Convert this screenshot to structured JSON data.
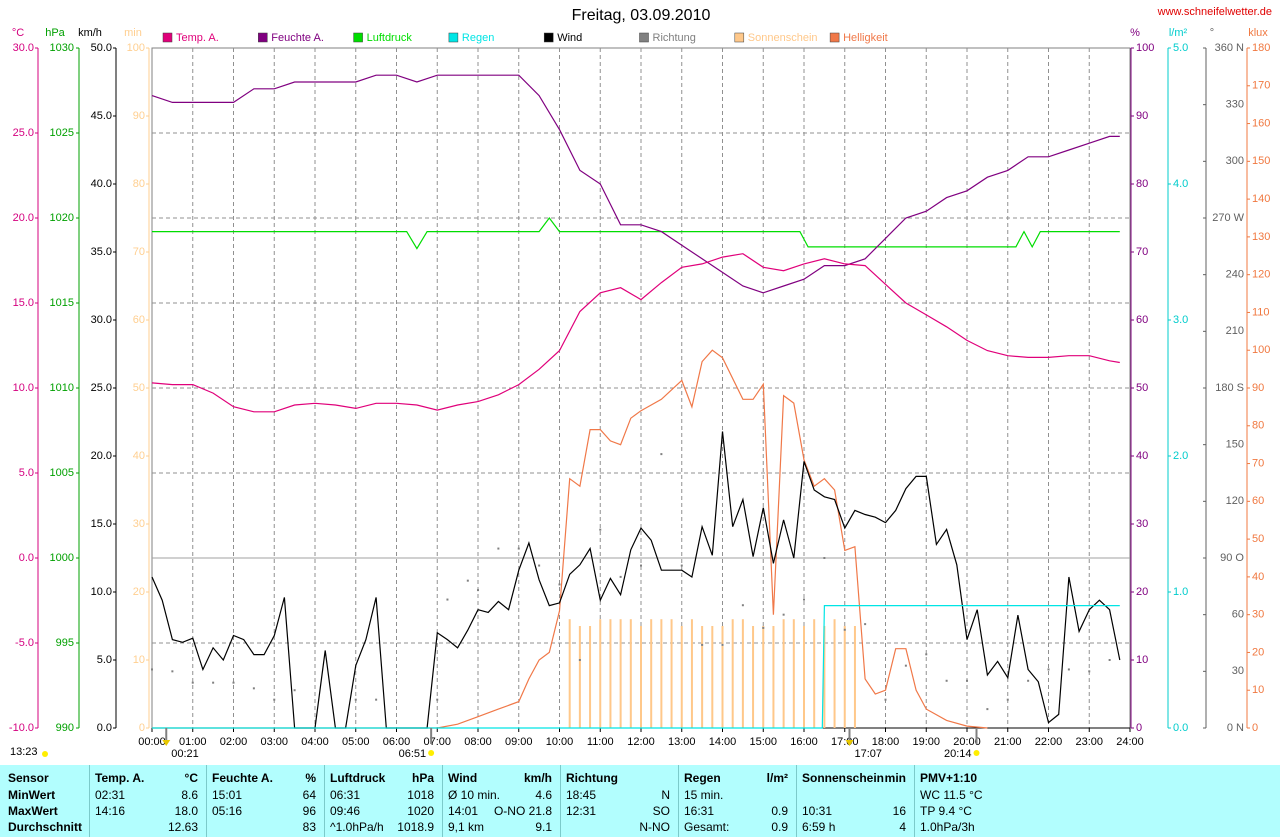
{
  "chart_data": {
    "type": "line",
    "title": "Freitag, 03.09.2010",
    "source": "www.schneifelwetter.de",
    "generated": "13:23",
    "annotations": [
      "00:21",
      "06:51",
      "17:07",
      "20:14"
    ],
    "xlim": [
      0,
      24
    ],
    "xticks": [
      {
        "value": 0,
        "label": "00:00"
      },
      {
        "value": 1,
        "label": "01:00"
      },
      {
        "value": 2,
        "label": "02:00"
      },
      {
        "value": 3,
        "label": "03:00"
      },
      {
        "value": 4,
        "label": "04:00"
      },
      {
        "value": 5,
        "label": "05:00"
      },
      {
        "value": 6,
        "label": "06:00"
      },
      {
        "value": 7,
        "label": "07:00"
      },
      {
        "value": 8,
        "label": "08:00"
      },
      {
        "value": 9,
        "label": "09:00"
      },
      {
        "value": 10,
        "label": "10:00"
      },
      {
        "value": 11,
        "label": "11:00"
      },
      {
        "value": 12,
        "label": "12:00"
      },
      {
        "value": 13,
        "label": "13:00"
      },
      {
        "value": 14,
        "label": "14:00"
      },
      {
        "value": 15,
        "label": "15:00"
      },
      {
        "value": 16,
        "label": "16:00"
      },
      {
        "value": 17,
        "label": "17:00"
      },
      {
        "value": 18,
        "label": "18:00"
      },
      {
        "value": 19,
        "label": "19:00"
      },
      {
        "value": 20,
        "label": "20:00"
      },
      {
        "value": 21,
        "label": "21:00"
      },
      {
        "value": 22,
        "label": "22:00"
      },
      {
        "value": 23,
        "label": "23:00"
      },
      {
        "value": 24,
        "label": "24:00"
      }
    ],
    "xgrid": true,
    "axes": [
      {
        "label": "°C",
        "color": "#d4007f",
        "lim": [
          -10,
          30
        ],
        "grid": true,
        "ticks": [
          {
            "value": -10,
            "label": "-10.0"
          },
          {
            "value": -5,
            "label": "-5.0"
          },
          {
            "value": 0,
            "label": "0.0"
          },
          {
            "value": 5,
            "label": "5.0"
          },
          {
            "value": 10,
            "label": "10.0"
          },
          {
            "value": 15,
            "label": "15.0"
          },
          {
            "value": 20,
            "label": "20.0"
          },
          {
            "value": 25,
            "label": "25.0"
          },
          {
            "value": 30,
            "label": "30.0"
          }
        ]
      },
      {
        "label": "hPa",
        "color": "#00a000",
        "lim": [
          990,
          1030
        ],
        "ticks": [
          990,
          995,
          1000,
          1005,
          1010,
          1015,
          1020,
          1025,
          1030
        ]
      },
      {
        "label": "km/h",
        "color": "#000000",
        "lim": [
          0,
          50
        ],
        "ticks": [
          {
            "value": 0,
            "label": "0.0"
          },
          {
            "value": 5,
            "label": "5.0"
          },
          {
            "value": 10,
            "label": "10.0"
          },
          {
            "value": 15,
            "label": "15.0"
          },
          {
            "value": 20,
            "label": "20.0"
          },
          {
            "value": 25,
            "label": "25.0"
          },
          {
            "value": 30,
            "label": "30.0"
          },
          {
            "value": 35,
            "label": "35.0"
          },
          {
            "value": 40,
            "label": "40.0"
          },
          {
            "value": 45,
            "label": "45.0"
          },
          {
            "value": 50,
            "label": "50.0"
          }
        ]
      },
      {
        "label": "min",
        "color": "#ffcf90",
        "lim": [
          0,
          100
        ],
        "ticks": [
          0,
          10,
          20,
          30,
          40,
          50,
          60,
          70,
          80,
          90,
          100
        ]
      },
      {
        "label": "%",
        "color": "#800080",
        "lim": [
          0,
          100
        ],
        "ticks": [
          0,
          10,
          20,
          30,
          40,
          50,
          60,
          70,
          80,
          90,
          100
        ]
      },
      {
        "label": "l/m²",
        "color": "#00cccc",
        "lim": [
          0,
          5
        ],
        "ticks": [
          {
            "value": 0,
            "label": "0.0"
          },
          {
            "value": 1,
            "label": "1.0"
          },
          {
            "value": 2,
            "label": "2.0"
          },
          {
            "value": 3,
            "label": "3.0"
          },
          {
            "value": 4,
            "label": "4.0"
          },
          {
            "value": 5,
            "label": "5.0"
          }
        ]
      },
      {
        "label": "°",
        "color": "#606060",
        "lim": [
          0,
          360
        ],
        "ticks": [
          {
            "value": 0,
            "label": "0 N"
          },
          30,
          60,
          {
            "value": 90,
            "label": "90 O"
          },
          120,
          150,
          {
            "value": 180,
            "label": "180 S"
          },
          210,
          240,
          {
            "value": 270,
            "label": "270 W"
          },
          300,
          330,
          {
            "value": 360,
            "label": "360 N"
          }
        ]
      },
      {
        "label": "klux",
        "color": "#f07840",
        "lim": [
          0,
          180
        ],
        "ticks": [
          0,
          10,
          20,
          30,
          40,
          50,
          60,
          70,
          80,
          90,
          100,
          110,
          120,
          130,
          140,
          150,
          160,
          170,
          180
        ]
      }
    ],
    "x": [
      0,
      0.5,
      1,
      1.5,
      2,
      2.5,
      3,
      3.5,
      4,
      4.5,
      5,
      5.5,
      6,
      6.5,
      7,
      7.5,
      8,
      8.5,
      9,
      9.5,
      10,
      10.5,
      11,
      11.5,
      12,
      12.5,
      13,
      13.5,
      14,
      14.5,
      15,
      15.5,
      16,
      16.5,
      17,
      17.5,
      18,
      18.5,
      19,
      19.5,
      20,
      20.5,
      21,
      21.5,
      22,
      22.5,
      23,
      23.5,
      23.75
    ],
    "series": [
      {
        "name": "Temp. A.",
        "type": "line",
        "axis": 0,
        "color": "#e0007a",
        "values": [
          10.3,
          10.2,
          10.2,
          9.7,
          8.9,
          8.6,
          8.6,
          9.0,
          9.1,
          9.0,
          8.8,
          9.1,
          9.1,
          9.0,
          8.7,
          9.0,
          9.2,
          9.6,
          10.2,
          11.1,
          12.2,
          14.5,
          15.6,
          15.9,
          15.2,
          16.2,
          17.1,
          17.3,
          17.7,
          17.9,
          17.1,
          16.9,
          17.3,
          17.6,
          17.3,
          17.2,
          16.1,
          15.0,
          14.3,
          13.6,
          12.8,
          12.2,
          11.9,
          11.8,
          11.8,
          11.9,
          11.9,
          11.6,
          11.5
        ]
      },
      {
        "name": "Feuchte A.",
        "type": "line",
        "axis": 4,
        "color": "#800080",
        "values": [
          93,
          92,
          92,
          92,
          92,
          94,
          94,
          95,
          95,
          95,
          95,
          96,
          96,
          95,
          96,
          96,
          96,
          96,
          96,
          93,
          88,
          82,
          80,
          74,
          74,
          73,
          71,
          69,
          67,
          65,
          64,
          65,
          66,
          68,
          68,
          69,
          72,
          75,
          76,
          78,
          79,
          81,
          82,
          84,
          84,
          85,
          86,
          87,
          87
        ]
      },
      {
        "name": "Luftdruck",
        "type": "line",
        "axis": 1,
        "color": "#00dd00",
        "x": [
          0,
          6.25,
          6.5,
          6.75,
          9.5,
          9.75,
          10,
          15.9,
          16.1,
          21.2,
          21.4,
          21.6,
          21.8,
          23.75
        ],
        "values": [
          1019.2,
          1019.2,
          1018.2,
          1019.2,
          1019.2,
          1020,
          1019.2,
          1019.2,
          1018.3,
          1018.3,
          1019.2,
          1018.3,
          1019.2,
          1019.2
        ]
      },
      {
        "name": "Regen",
        "type": "line",
        "axis": 5,
        "color": "#00e5e5",
        "x": [
          0,
          16.45,
          16.5,
          23.75
        ],
        "values": [
          0,
          0,
          0.9,
          0.9
        ]
      },
      {
        "name": "Wind",
        "type": "line",
        "axis": 2,
        "color": "#000000",
        "x": [
          0,
          0.25,
          0.5,
          0.75,
          1,
          1.25,
          1.5,
          1.75,
          2,
          2.25,
          2.5,
          2.75,
          3,
          3.25,
          3.5,
          3.75,
          4,
          4.25,
          4.5,
          4.75,
          5,
          5.25,
          5.5,
          5.75,
          6,
          6.25,
          6.5,
          6.75,
          7,
          7.25,
          7.5,
          7.75,
          8,
          8.25,
          8.5,
          8.75,
          9,
          9.25,
          9.5,
          9.75,
          10,
          10.25,
          10.5,
          10.75,
          11,
          11.25,
          11.5,
          11.75,
          12,
          12.25,
          12.5,
          12.75,
          13,
          13.25,
          13.5,
          13.75,
          14,
          14.25,
          14.5,
          14.75,
          15,
          15.25,
          15.5,
          15.75,
          16,
          16.25,
          16.5,
          16.75,
          17,
          17.25,
          17.5,
          17.75,
          18,
          18.25,
          18.5,
          18.75,
          19,
          19.25,
          19.5,
          19.75,
          20,
          20.25,
          20.5,
          20.75,
          21,
          21.25,
          21.5,
          21.75,
          22,
          22.25,
          22.5,
          22.75,
          23,
          23.25,
          23.5,
          23.75
        ],
        "values": [
          11.1,
          9.4,
          6.5,
          6.3,
          6.6,
          4.3,
          5.9,
          5.0,
          6.8,
          6.5,
          5.4,
          5.4,
          6.8,
          9.6,
          0,
          0,
          0,
          5.7,
          0,
          0,
          4.6,
          6.5,
          9.6,
          0,
          0,
          0,
          0,
          0,
          7.0,
          6.5,
          5.9,
          7.2,
          8.7,
          8.5,
          9.3,
          8.7,
          11.6,
          13.6,
          10.9,
          9.0,
          9.2,
          11.3,
          12.0,
          13.2,
          9.4,
          11.0,
          9.8,
          13.1,
          14.7,
          13.8,
          11.6,
          11.6,
          11.6,
          11.1,
          14.8,
          12.7,
          21.8,
          14.8,
          16.8,
          12.6,
          16.2,
          12.1,
          15.3,
          12.5,
          19.6,
          17.5,
          17.0,
          16.8,
          14.7,
          16.0,
          15.7,
          15.5,
          15.1,
          16.0,
          17.6,
          18.5,
          18.5,
          13.5,
          14.6,
          12.0,
          6.5,
          8.7,
          3.9,
          4.9,
          3.7,
          8.3,
          4.3,
          3.4,
          0.4,
          1.0,
          11.1,
          7.1,
          8.7,
          9.4,
          8.7,
          5.0
        ]
      },
      {
        "name": "Richtung",
        "type": "dots",
        "axis": 6,
        "color": "#808080",
        "x": [
          0,
          0.5,
          1,
          1.5,
          2,
          2.5,
          3,
          3.5,
          5,
          5.5,
          7,
          7.25,
          7.75,
          8,
          8.5,
          9,
          9.5,
          10,
          10.5,
          11,
          11.5,
          12,
          12.5,
          13,
          13.5,
          14,
          14.5,
          15,
          15.5,
          16,
          16.5,
          17,
          17.5,
          18,
          18.5,
          19,
          19.5,
          20,
          20.5,
          21,
          21.5,
          22,
          22.5,
          23,
          23.5
        ],
        "values": [
          31,
          30,
          24,
          24,
          24,
          21,
          15,
          20,
          15,
          15,
          15,
          68,
          78,
          73,
          95,
          95,
          86,
          76,
          36,
          105,
          80,
          86,
          145,
          86,
          44,
          44,
          65,
          53,
          60,
          68,
          90,
          52,
          55,
          15,
          33,
          39,
          25,
          25,
          10,
          15,
          25,
          31,
          31,
          30,
          36
        ]
      },
      {
        "name": "Sonnenschein",
        "type": "bars",
        "axis": 3,
        "color": "#ffc88a",
        "x": [
          10.25,
          10.5,
          10.75,
          11,
          11.25,
          11.5,
          11.75,
          12,
          12.25,
          12.5,
          12.75,
          13,
          13.25,
          13.5,
          13.75,
          14,
          14.25,
          14.5,
          14.75,
          15,
          15.25,
          15.5,
          15.75,
          16,
          16.25,
          16.5,
          16.75,
          17,
          17.25
        ],
        "values": [
          16,
          15,
          15,
          16,
          16,
          16,
          16,
          15,
          16,
          16,
          16,
          15,
          16,
          15,
          15,
          15,
          16,
          16,
          15,
          15,
          15,
          16,
          16,
          15,
          16,
          15,
          16,
          15,
          15
        ]
      },
      {
        "name": "Helligkeit",
        "type": "line",
        "axis": 7,
        "color": "#f07848",
        "x": [
          0,
          7,
          7.5,
          8,
          8.5,
          9,
          9.25,
          9.5,
          9.75,
          10,
          10.25,
          10.5,
          10.75,
          11,
          11.25,
          11.5,
          11.75,
          12,
          12.5,
          13,
          13.25,
          13.5,
          13.75,
          14,
          14.5,
          14.75,
          15,
          15.25,
          15.5,
          15.75,
          16,
          16.25,
          16.5,
          16.75,
          17,
          17.25,
          17.5,
          17.75,
          18,
          18.25,
          18.5,
          18.75,
          19,
          19.5,
          20,
          20.5
        ],
        "values": [
          0,
          0,
          1,
          3,
          5,
          7,
          13,
          18,
          20,
          31,
          66,
          64,
          79,
          79,
          76,
          75,
          82,
          84,
          87,
          92,
          85,
          97,
          100,
          98,
          87,
          87,
          91,
          30,
          88,
          86,
          71,
          64,
          66,
          63,
          47,
          48,
          13,
          9,
          10,
          21,
          21,
          10,
          5,
          2,
          0.5,
          0
        ]
      }
    ]
  },
  "table": {
    "header": [
      {
        "l": "Sensor"
      },
      {
        "l": "Temp. A.",
        "r": "°C"
      },
      {
        "l": "Feuchte A.",
        "r": "%"
      },
      {
        "l": "Luftdruck",
        "r": "hPa"
      },
      {
        "l": "Wind",
        "r": "km/h"
      },
      {
        "l": "Richtung"
      },
      {
        "l": "Regen",
        "r": "l/m²"
      },
      {
        "l": "Sonnenschein",
        "r": "min"
      },
      {
        "l": "PMV+1:10"
      }
    ],
    "rows": [
      [
        {
          "l": "MinWert"
        },
        {
          "l": "02:31",
          "r": "8.6"
        },
        {
          "l": "15:01",
          "r": "64"
        },
        {
          "l": "06:31",
          "r": "1018"
        },
        {
          "l": "Ø 10 min.",
          "r": "4.6"
        },
        {
          "l": "18:45",
          "r": "N"
        },
        {
          "l": "15 min."
        },
        {},
        {
          "l": "WC 11.5 °C"
        }
      ],
      [
        {
          "l": "MaxWert"
        },
        {
          "l": "14:16",
          "r": "18.0"
        },
        {
          "l": "05:16",
          "r": "96"
        },
        {
          "l": "09:46",
          "r": "1020"
        },
        {
          "l": "14:01",
          "r": "O-NO 21.8"
        },
        {
          "l": "12:31",
          "r": "SO"
        },
        {
          "l": "16:31",
          "r": "0.9"
        },
        {
          "l": "10:31",
          "r": "16"
        },
        {
          "l": "TP 9.4 °C"
        }
      ],
      [
        {
          "l": "Durchschnitt"
        },
        {
          "r": "12.63"
        },
        {
          "r": "83"
        },
        {
          "l": "^1.0hPa/h",
          "r": "1018.9"
        },
        {
          "l": "9,1 km",
          "r": "9.1"
        },
        {
          "r": "N-NO"
        },
        {
          "l": "Gesamt:",
          "r": "0.9"
        },
        {
          "l": "6:59 h",
          "r": "4"
        },
        {
          "l": "1.0hPa/3h"
        }
      ]
    ]
  }
}
